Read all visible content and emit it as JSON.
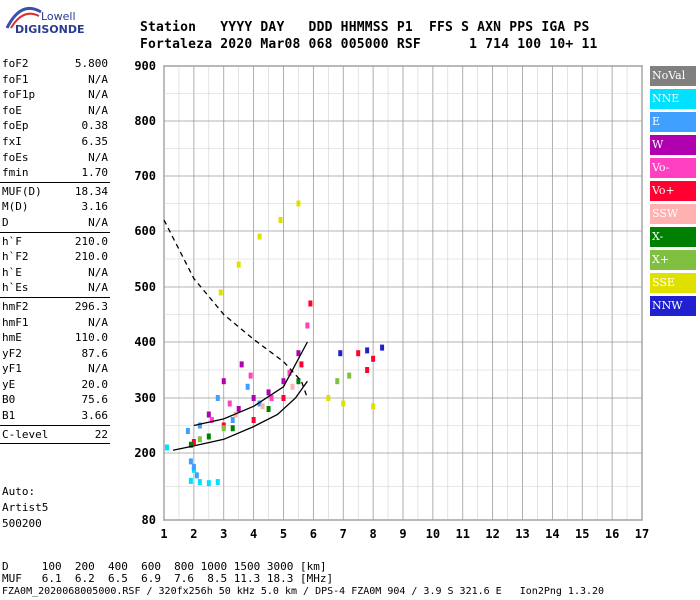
{
  "brand": {
    "line1": "Lowell",
    "line2": "DIGISONDE"
  },
  "header": {
    "line1": "Station   YYYY DAY   DDD HHMMSS P1  FFS S AXN PPS IGA PS",
    "line2": "Fortaleza 2020 Mar08 068 005000 RSF      1 714 100 10+ 11"
  },
  "params": {
    "group1": [
      {
        "label": "foF2",
        "value": "5.800"
      },
      {
        "label": "foF1",
        "value": "N/A"
      },
      {
        "label": "foF1p",
        "value": "N/A"
      },
      {
        "label": "foE",
        "value": "N/A"
      },
      {
        "label": "foEp",
        "value": "0.38"
      },
      {
        "label": "fxI",
        "value": "6.35"
      },
      {
        "label": "foEs",
        "value": "N/A"
      },
      {
        "label": "fmin",
        "value": "1.70"
      }
    ],
    "group2": [
      {
        "label": "MUF(D)",
        "value": "18.34"
      },
      {
        "label": "M(D)",
        "value": "3.16"
      },
      {
        "label": "D",
        "value": "N/A"
      }
    ],
    "group3": [
      {
        "label": "h`F",
        "value": "210.0"
      },
      {
        "label": "h`F2",
        "value": "210.0"
      },
      {
        "label": "h`E",
        "value": "N/A"
      },
      {
        "label": "h`Es",
        "value": "N/A"
      }
    ],
    "group4": [
      {
        "label": "hmF2",
        "value": "296.3"
      },
      {
        "label": "hmF1",
        "value": "N/A"
      },
      {
        "label": "hmE",
        "value": "110.0"
      },
      {
        "label": "yF2",
        "value": "87.6"
      },
      {
        "label": "yF1",
        "value": "N/A"
      },
      {
        "label": "yE",
        "value": "20.0"
      },
      {
        "label": "B0",
        "value": "75.6"
      },
      {
        "label": "B1",
        "value": "3.66"
      }
    ],
    "group5": [
      {
        "label": "C-level",
        "value": "22"
      }
    ]
  },
  "auto": {
    "line1": "Auto:",
    "line2": "Artist5",
    "line3": "500200"
  },
  "legend": [
    {
      "label": "NoVal",
      "color": "#808080"
    },
    {
      "label": "NNE",
      "color": "#00e0ff"
    },
    {
      "label": "E",
      "color": "#40a0ff"
    },
    {
      "label": "W",
      "color": "#b000b0"
    },
    {
      "label": "Vo-",
      "color": "#ff40c0"
    },
    {
      "label": "Vo+",
      "color": "#ff0030"
    },
    {
      "label": "SSW",
      "color": "#ffb0b0"
    },
    {
      "label": "X-",
      "color": "#008000"
    },
    {
      "label": "X+",
      "color": "#80c040"
    },
    {
      "label": "SSE",
      "color": "#e0e000"
    },
    {
      "label": "NNW",
      "color": "#2020d0"
    }
  ],
  "table": {
    "row1": "D     100  200  400  600  800 1000 1500 3000 [km]",
    "row2": "MUF   6.1  6.2  6.5  6.9  7.6  8.5 11.3 18.3 [MHz]"
  },
  "footer": "FZA0M_2020068005000.RSF / 320fx256h 50 kHz 5.0 km / DPS-4 FZA0M 904 / 3.9 S 321.6 E   Ion2Png 1.3.20",
  "chart_data": {
    "type": "scatter",
    "title": "",
    "xlabel": "",
    "ylabel": "",
    "xlim": [
      1,
      17
    ],
    "ylim": [
      80,
      900
    ],
    "x_ticks": [
      1,
      2,
      3,
      4,
      5,
      6,
      7,
      8,
      9,
      10,
      11,
      12,
      13,
      14,
      15,
      16,
      17
    ],
    "y_ticks": [
      80,
      200,
      300,
      400,
      500,
      600,
      700,
      800,
      900
    ],
    "grid": true,
    "legend_position": "right",
    "series": [
      {
        "name": "NoVal",
        "points": []
      },
      {
        "name": "NNE",
        "points": [
          [
            1.9,
            150
          ],
          [
            2.0,
            170
          ],
          [
            2.2,
            148
          ],
          [
            2.5,
            146
          ],
          [
            2.8,
            148
          ],
          [
            1.1,
            210
          ]
        ]
      },
      {
        "name": "E",
        "points": [
          [
            1.8,
            240
          ],
          [
            2.2,
            250
          ],
          [
            2.8,
            300
          ],
          [
            3.3,
            260
          ],
          [
            3.8,
            320
          ],
          [
            4.2,
            290
          ],
          [
            2.0,
            175
          ],
          [
            2.1,
            160
          ],
          [
            1.9,
            185
          ]
        ]
      },
      {
        "name": "W",
        "points": [
          [
            2.5,
            270
          ],
          [
            3.0,
            330
          ],
          [
            3.5,
            280
          ],
          [
            4.0,
            300
          ],
          [
            4.5,
            310
          ],
          [
            5.0,
            330
          ],
          [
            5.5,
            380
          ],
          [
            3.6,
            360
          ]
        ]
      },
      {
        "name": "Vo-",
        "points": [
          [
            2.6,
            260
          ],
          [
            3.2,
            290
          ],
          [
            3.9,
            340
          ],
          [
            4.6,
            300
          ],
          [
            5.2,
            345
          ],
          [
            5.8,
            430
          ]
        ]
      },
      {
        "name": "Vo+",
        "points": [
          [
            2.0,
            220
          ],
          [
            3.0,
            250
          ],
          [
            4.0,
            260
          ],
          [
            5.0,
            300
          ],
          [
            5.6,
            360
          ],
          [
            5.9,
            470
          ],
          [
            7.5,
            380
          ],
          [
            7.8,
            350
          ],
          [
            8.0,
            370
          ]
        ]
      },
      {
        "name": "SSW",
        "points": [
          [
            3.4,
            270
          ],
          [
            4.3,
            285
          ],
          [
            5.3,
            320
          ]
        ]
      },
      {
        "name": "X-",
        "points": [
          [
            1.9,
            215
          ],
          [
            2.5,
            230
          ],
          [
            3.3,
            245
          ],
          [
            4.5,
            280
          ],
          [
            5.5,
            330
          ]
        ]
      },
      {
        "name": "X+",
        "points": [
          [
            2.2,
            225
          ],
          [
            3.0,
            245
          ],
          [
            6.8,
            330
          ],
          [
            7.2,
            340
          ]
        ]
      },
      {
        "name": "SSE",
        "points": [
          [
            2.9,
            490
          ],
          [
            3.5,
            540
          ],
          [
            4.2,
            590
          ],
          [
            4.9,
            620
          ],
          [
            5.5,
            650
          ],
          [
            6.5,
            300
          ],
          [
            7.0,
            290
          ],
          [
            8.0,
            285
          ]
        ]
      },
      {
        "name": "NNW",
        "points": [
          [
            6.9,
            380
          ],
          [
            7.8,
            385
          ],
          [
            8.3,
            390
          ]
        ]
      }
    ],
    "curves": [
      {
        "name": "solid profile",
        "style": "solid",
        "points": [
          [
            1.3,
            205
          ],
          [
            2.0,
            213
          ],
          [
            3.0,
            225
          ],
          [
            4.0,
            248
          ],
          [
            4.8,
            270
          ],
          [
            5.4,
            300
          ],
          [
            5.8,
            330
          ]
        ]
      },
      {
        "name": "dashed profile",
        "style": "dashed",
        "points": [
          [
            1.0,
            620
          ],
          [
            2.0,
            515
          ],
          [
            3.0,
            450
          ],
          [
            4.0,
            405
          ],
          [
            5.0,
            365
          ],
          [
            5.6,
            330
          ],
          [
            5.8,
            300
          ]
        ]
      },
      {
        "name": "solid trace",
        "style": "solid",
        "points": [
          [
            2.0,
            250
          ],
          [
            3.0,
            262
          ],
          [
            4.0,
            285
          ],
          [
            5.0,
            320
          ],
          [
            5.8,
            400
          ]
        ]
      }
    ]
  }
}
